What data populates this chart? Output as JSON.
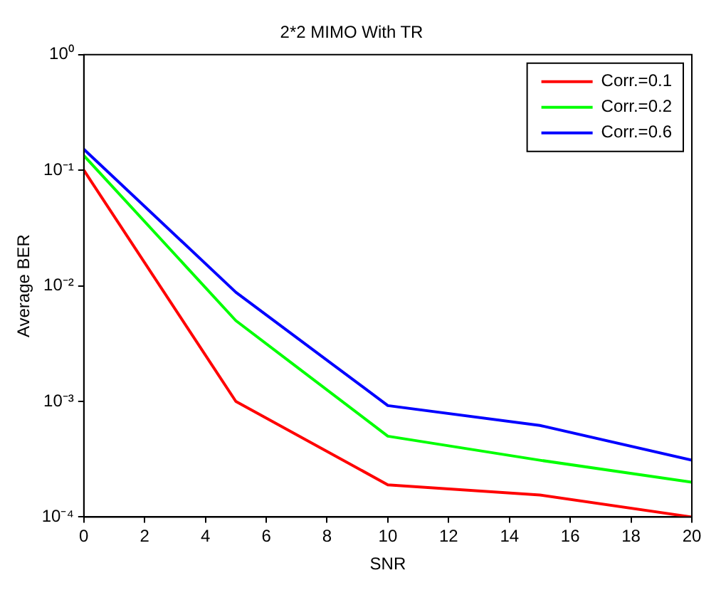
{
  "chart_data": {
    "type": "line",
    "title": "2*2 MIMO With TR",
    "xlabel": "SNR",
    "ylabel": "Average BER",
    "x": [
      0,
      5,
      10,
      15,
      20
    ],
    "series": [
      {
        "name": "Corr.=0.1",
        "color": "#ff0000",
        "values": [
          0.1,
          0.001,
          0.00019,
          0.000155,
          0.0001
        ]
      },
      {
        "name": "Corr.=0.2",
        "color": "#00ff00",
        "values": [
          0.134,
          0.005,
          0.0005,
          0.00031,
          0.0002
        ]
      },
      {
        "name": "Corr.=0.6",
        "color": "#0000ff",
        "values": [
          0.152,
          0.0088,
          0.00092,
          0.00062,
          0.00031
        ]
      }
    ],
    "log": "y",
    "xlim": [
      0,
      20
    ],
    "xticks": [
      0,
      2,
      4,
      6,
      8,
      10,
      12,
      14,
      16,
      18,
      20
    ],
    "ylim": [
      0.0001,
      1
    ],
    "yticks": [
      {
        "value": 0.0001,
        "label": "10⁻⁴"
      },
      {
        "value": 0.001,
        "label": "10⁻³"
      },
      {
        "value": 0.01,
        "label": "10⁻²"
      },
      {
        "value": 0.1,
        "label": "10⁻¹"
      },
      {
        "value": 1,
        "label": "10⁰"
      }
    ],
    "grid": false,
    "legend": "top right",
    "marker": "none",
    "line_style": "solid"
  }
}
